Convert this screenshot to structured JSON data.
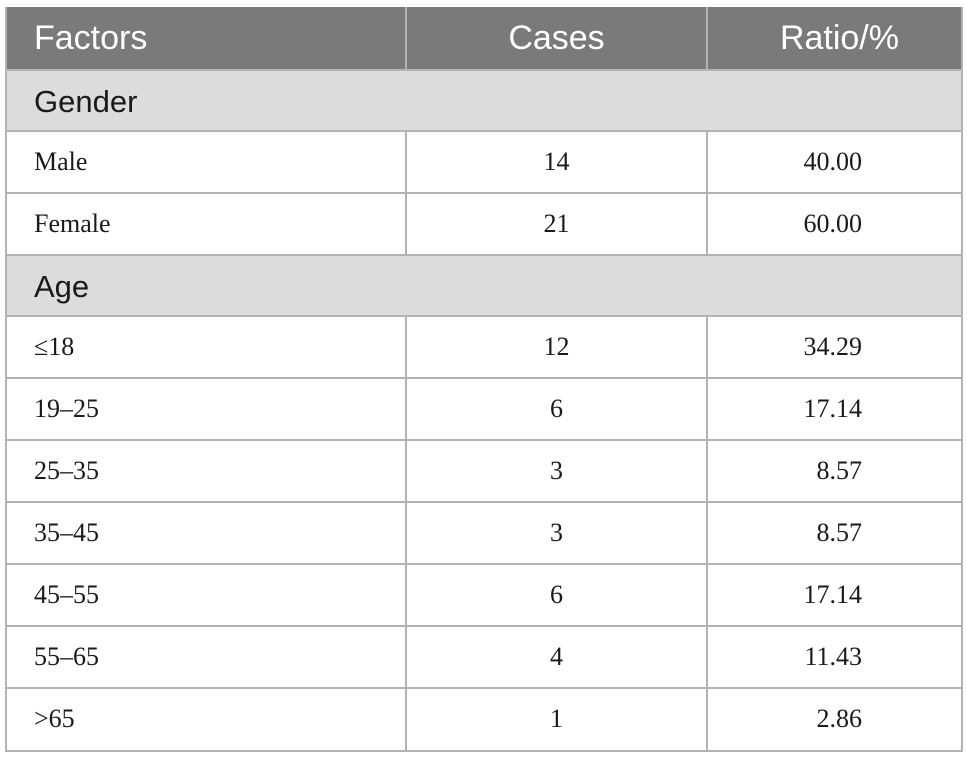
{
  "table": {
    "headers": [
      "Factors",
      "Cases",
      "Ratio/%"
    ],
    "sections": [
      {
        "title": "Gender",
        "rows": [
          {
            "factor": "Male",
            "cases": "14",
            "ratio": "40.00"
          },
          {
            "factor": "Female",
            "cases": "21",
            "ratio": "60.00"
          }
        ]
      },
      {
        "title": "Age",
        "rows": [
          {
            "factor": "≤18",
            "cases": "12",
            "ratio": "34.29"
          },
          {
            "factor": "19–25",
            "cases": "6",
            "ratio": "17.14"
          },
          {
            "factor": "25–35",
            "cases": "3",
            "ratio": "8.57"
          },
          {
            "factor": "35–45",
            "cases": "3",
            "ratio": "8.57"
          },
          {
            "factor": "45–55",
            "cases": "6",
            "ratio": "17.14"
          },
          {
            "factor": "55–65",
            "cases": "4",
            "ratio": "11.43"
          },
          {
            "factor": ">65",
            "cases": "1",
            "ratio": "2.86"
          }
        ]
      }
    ]
  },
  "colors": {
    "header_bg": "#7a7a7a",
    "section_bg": "#dcdcdc",
    "border": "#b3b3b3"
  }
}
